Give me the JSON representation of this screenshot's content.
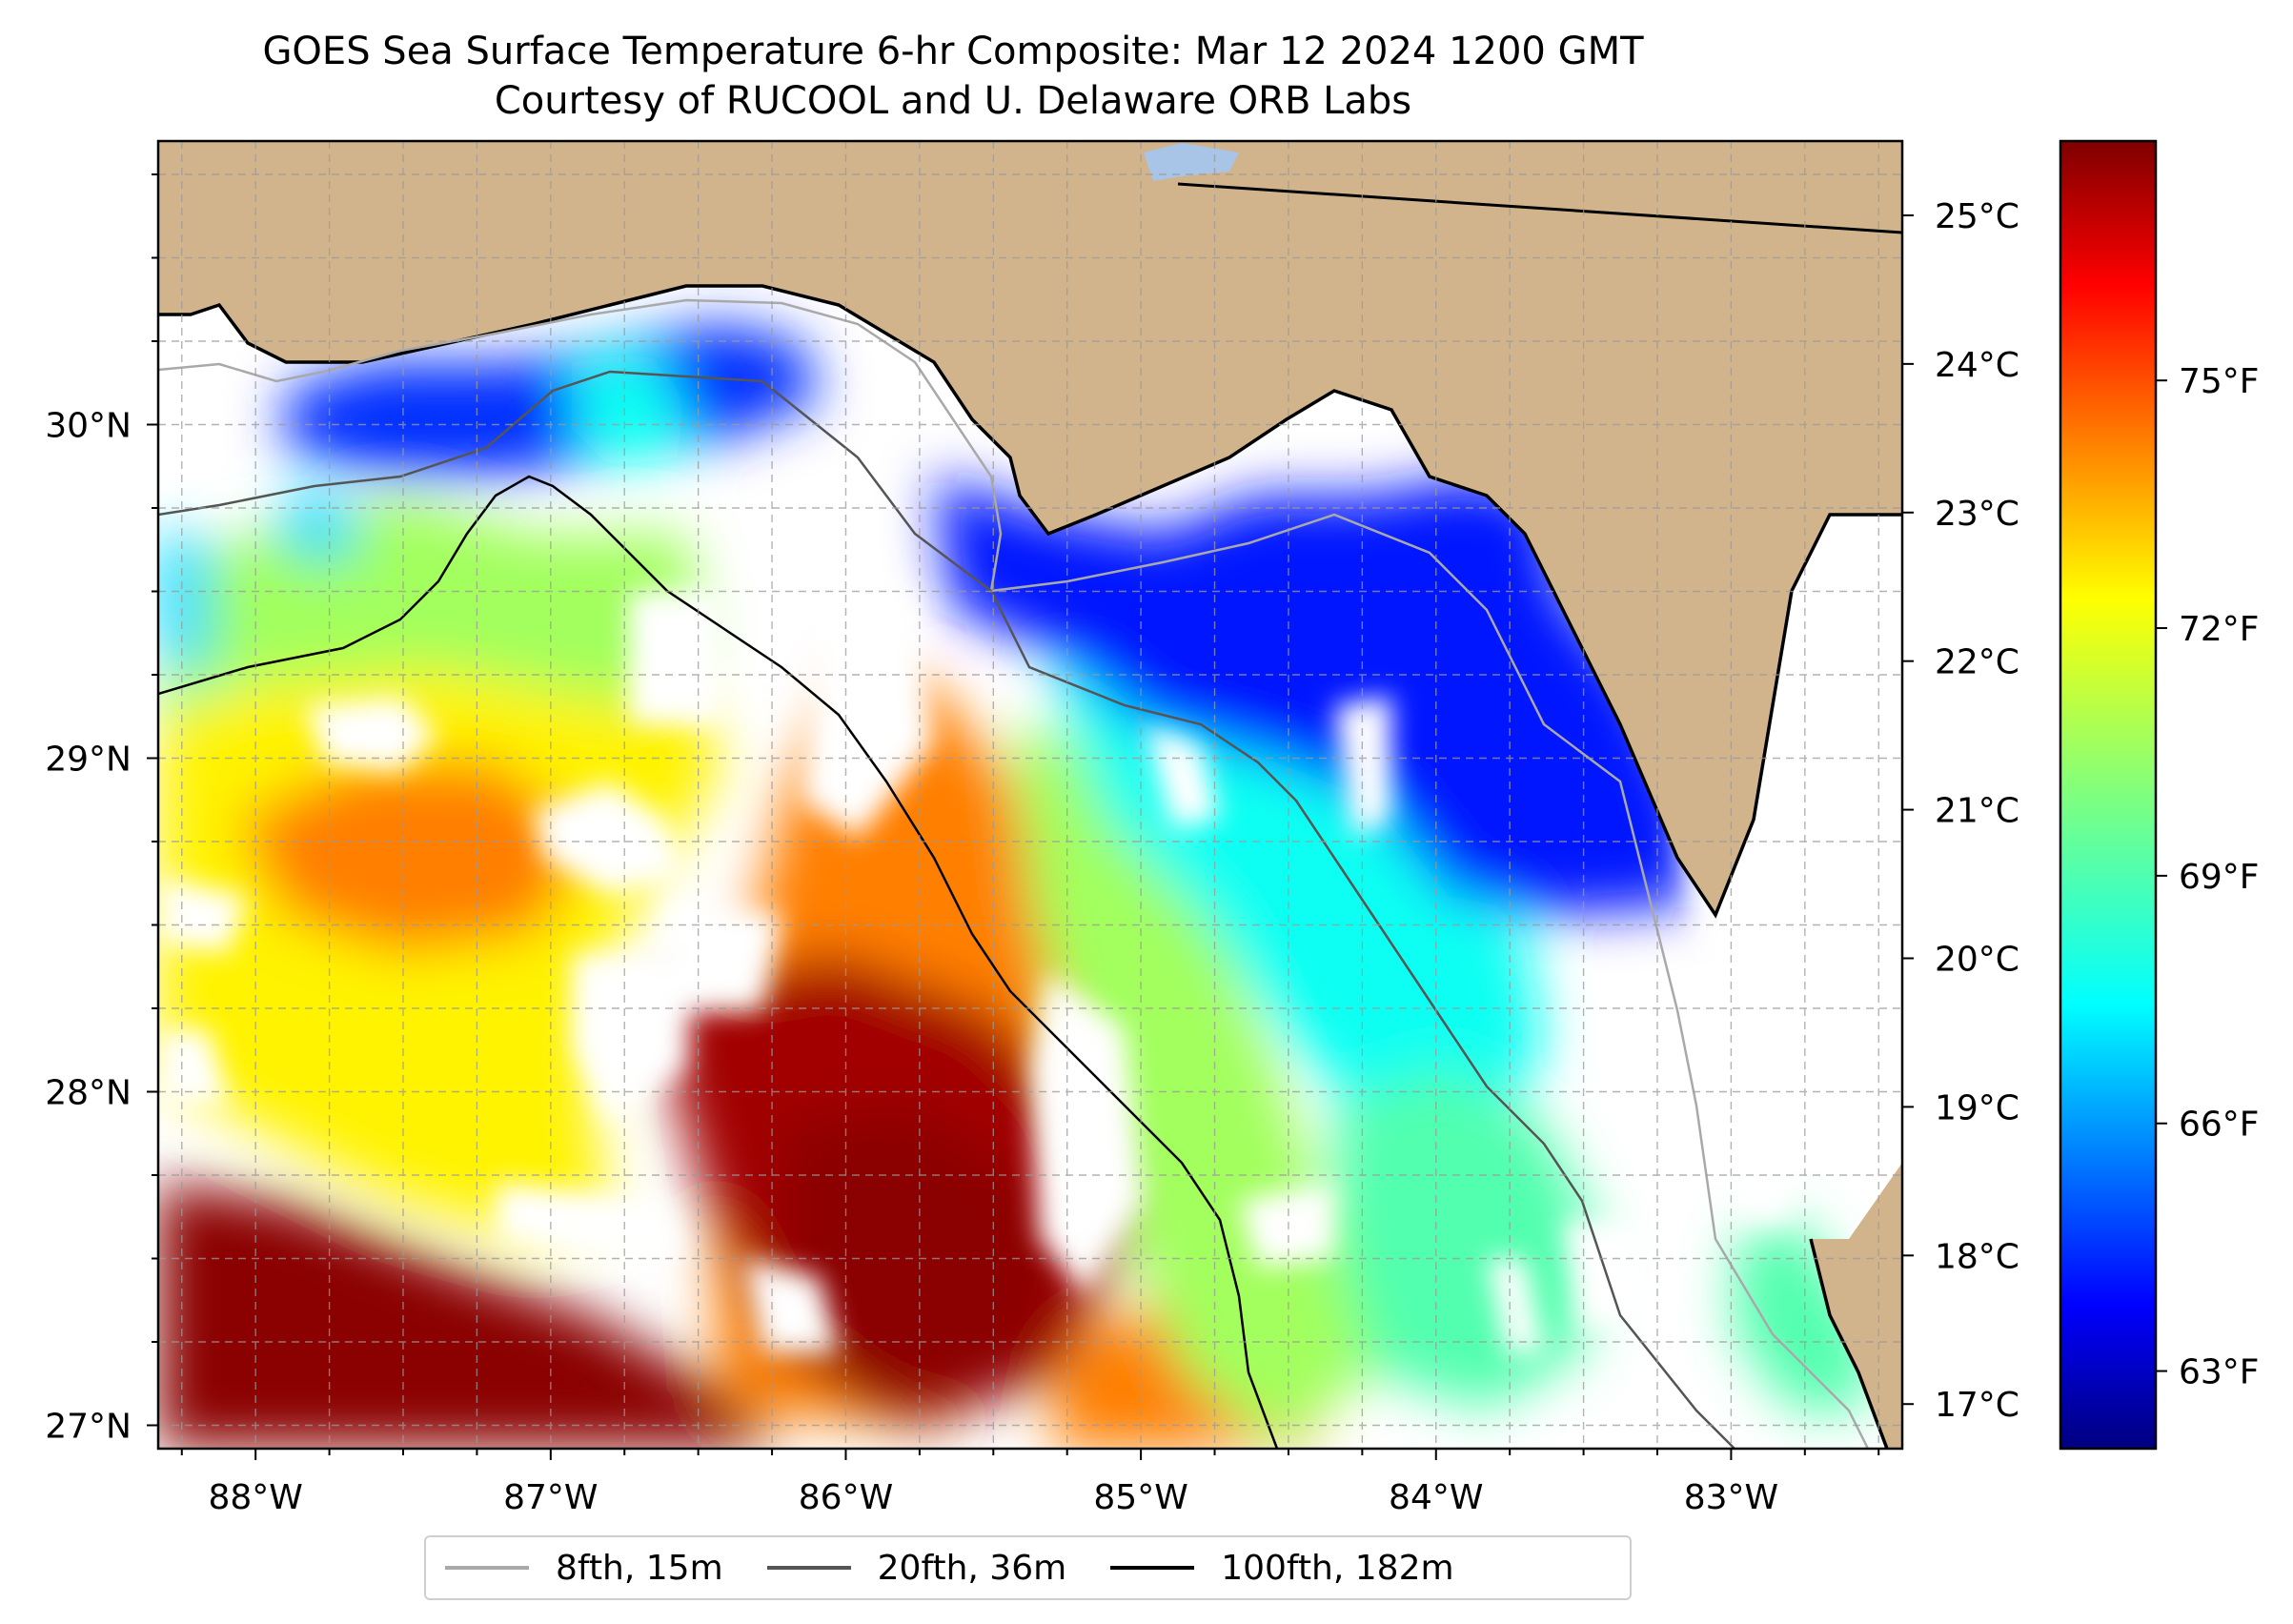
{
  "title_line1": "GOES Sea Surface Temperature 6-hr Composite: Mar 12 2024 1200 GMT",
  "title_line2": "Courtesy of RUCOOL and U. Delaware ORB Labs",
  "map": {
    "extent": {
      "lon": [
        -88.33,
        -82.42
      ],
      "lat": [
        26.93,
        30.85
      ]
    },
    "lon_ticks": [
      {
        "value": -88,
        "label": "88°W"
      },
      {
        "value": -87,
        "label": "87°W"
      },
      {
        "value": -86,
        "label": "86°W"
      },
      {
        "value": -85,
        "label": "85°W"
      },
      {
        "value": -84,
        "label": "84°W"
      },
      {
        "value": -83,
        "label": "83°W"
      }
    ],
    "lat_ticks": [
      {
        "value": 30,
        "label": "30°N"
      },
      {
        "value": 29,
        "label": "29°N"
      },
      {
        "value": 28,
        "label": "28°N"
      },
      {
        "value": 27,
        "label": "27°N"
      }
    ],
    "gridlines": true,
    "colors": {
      "land": "#d2b48c",
      "no_data": "#ffffff",
      "lake": "#a8c4e6",
      "coastline": "#000000"
    }
  },
  "legend": {
    "placement": "bottom-center",
    "items": [
      {
        "label": "8fth, 15m",
        "color": "#a9a9a9"
      },
      {
        "label": "20fth, 36m",
        "color": "#555555"
      },
      {
        "label": "100fth, 182m",
        "color": "#000000"
      }
    ]
  },
  "colorbar": {
    "colormap": "jet",
    "celsius_range": [
      16.7,
      25.5
    ],
    "celsius_ticks": [
      {
        "value": 17,
        "label": "17°C"
      },
      {
        "value": 18,
        "label": "18°C"
      },
      {
        "value": 19,
        "label": "19°C"
      },
      {
        "value": 20,
        "label": "20°C"
      },
      {
        "value": 21,
        "label": "21°C"
      },
      {
        "value": 22,
        "label": "22°C"
      },
      {
        "value": 23,
        "label": "23°C"
      },
      {
        "value": 24,
        "label": "24°C"
      },
      {
        "value": 25,
        "label": "25°C"
      }
    ],
    "fahrenheit_ticks": [
      {
        "value": 63,
        "label": "63°F"
      },
      {
        "value": 66,
        "label": "66°F"
      },
      {
        "value": 69,
        "label": "69°F"
      },
      {
        "value": 72,
        "label": "72°F"
      },
      {
        "value": 75,
        "label": "75°F"
      }
    ]
  },
  "sst_regions": [
    {
      "name": "deep-red-southwest",
      "temp_c": 25.4
    },
    {
      "name": "red-eddy-core",
      "temp_c": 25.2
    },
    {
      "name": "orange-central",
      "temp_c": 23.3
    },
    {
      "name": "yellow-west",
      "temp_c": 22.3
    },
    {
      "name": "green-yellow-shelf",
      "temp_c": 21.4
    },
    {
      "name": "cyan-big-bend",
      "temp_c": 20.1
    },
    {
      "name": "blue-apalachee-bay",
      "temp_c": 18.0
    },
    {
      "name": "blue-panhandle-nearshore",
      "temp_c": 18.2
    },
    {
      "name": "light-blue-mobile-bay",
      "temp_c": 19.7
    },
    {
      "name": "green-southeast",
      "temp_c": 20.7
    }
  ]
}
